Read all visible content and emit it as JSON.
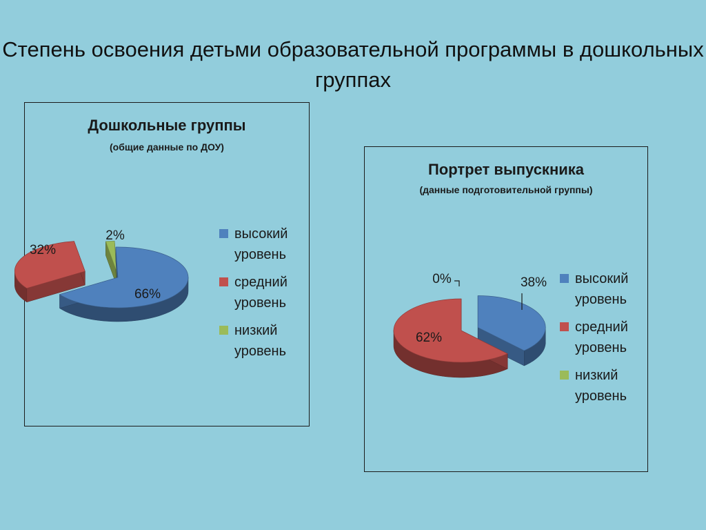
{
  "slide": {
    "title": "Степень освоения детьми образовательной программы в дошкольных группах"
  },
  "colors": {
    "background": "#92cddc",
    "high": "#4f81bd",
    "middle": "#c0504d",
    "low": "#9bbb59"
  },
  "chart_data": [
    {
      "type": "pie",
      "style": "3d-exploded",
      "title": "Дошкольные группы",
      "subtitle": "(общие данные по ДОУ)",
      "categories": [
        "высокий уровень",
        "средний уровень",
        "низкий уровень"
      ],
      "values": [
        66,
        32,
        2
      ],
      "labels": [
        "66%",
        "32%",
        "2%"
      ],
      "legend_position": "right"
    },
    {
      "type": "pie",
      "style": "3d-exploded",
      "title": "Портрет выпускника",
      "subtitle": "(данные подготовительной группы)",
      "categories": [
        "высокий уровень",
        "средний уровень",
        "низкий уровень"
      ],
      "values": [
        38,
        62,
        0
      ],
      "labels": [
        "38%",
        "62%",
        "0%"
      ],
      "legend_position": "right"
    }
  ]
}
